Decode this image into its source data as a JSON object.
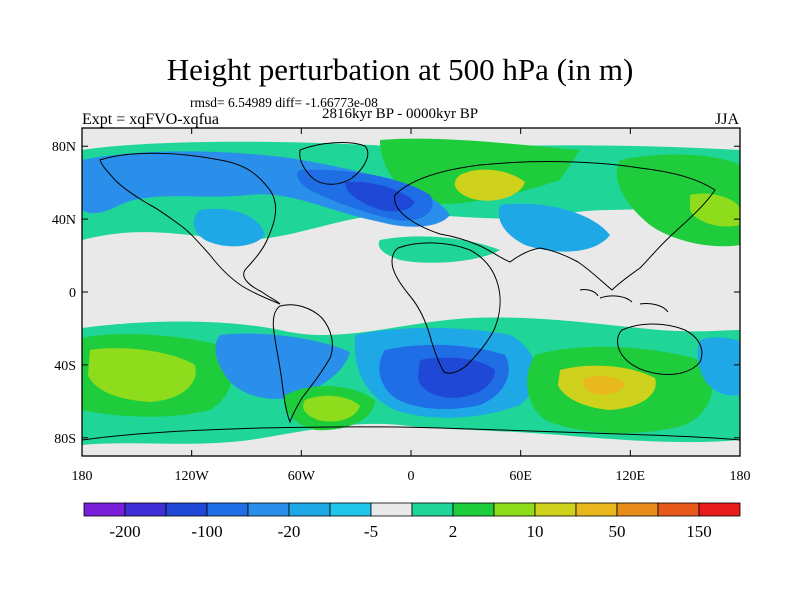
{
  "figure": {
    "title": "Height perturbation at 500 hPa (in m)",
    "stats": "rmsd= 6.54989 diff= -1.66773e-08",
    "period": "2816kyr BP - 0000kyr BP",
    "experiment": "Expt = xqFVO-xqfua",
    "season": "JJA"
  },
  "axes": {
    "lat_labels": [
      "80N",
      "40N",
      "0",
      "40S",
      "80S"
    ],
    "lat_values": [
      80,
      40,
      0,
      -40,
      -80
    ],
    "lon_labels": [
      "180",
      "120W",
      "60W",
      "0",
      "60E",
      "120E",
      "180"
    ],
    "lon_values": [
      -180,
      -120,
      -60,
      0,
      60,
      120,
      180
    ],
    "lat_range": [
      -90,
      90
    ],
    "lon_range": [
      -180,
      180
    ]
  },
  "colorbar": {
    "colors": [
      "#7a1fd8",
      "#3f2ed6",
      "#1f48d6",
      "#1f6ee6",
      "#2a8fea",
      "#1fa8e6",
      "#1fc6ea",
      "#e9e9e9",
      "#1fd698",
      "#1fcc3c",
      "#8fdc1c",
      "#cfd21c",
      "#e8b81c",
      "#e88c1c",
      "#e85a1c",
      "#e81c1c"
    ],
    "labels": [
      "-200",
      "-100",
      "-20",
      "-5",
      "2",
      "10",
      "50",
      "150"
    ]
  },
  "field_anomalies": [
    {
      "lon": -60,
      "lat": 60,
      "rx": 40,
      "ry": 16,
      "level": -2,
      "color": "#2a8fea"
    },
    {
      "lon": -20,
      "lat": 55,
      "rx": 22,
      "ry": 10,
      "level": -3,
      "color": "#1f6ee6"
    },
    {
      "lon": -120,
      "lat": 45,
      "rx": 20,
      "ry": 10,
      "level": -1,
      "color": "#1fa8e6"
    },
    {
      "lon": 40,
      "lat": 62,
      "rx": 32,
      "ry": 14,
      "level": 2,
      "color": "#1fcc3c"
    },
    {
      "lon": 45,
      "lat": 60,
      "rx": 14,
      "ry": 7,
      "level": 3,
      "color": "#cfd21c"
    },
    {
      "lon": 165,
      "lat": 50,
      "rx": 28,
      "ry": 14,
      "level": 2,
      "color": "#1fcc3c"
    },
    {
      "lon": 20,
      "lat": 40,
      "rx": 26,
      "ry": 10,
      "level": 1,
      "color": "#1fd698"
    },
    {
      "lon": -150,
      "lat": -35,
      "rx": 40,
      "ry": 16,
      "level": 3,
      "color": "#8fdc1c"
    },
    {
      "lon": -85,
      "lat": -45,
      "rx": 32,
      "ry": 14,
      "level": -2,
      "color": "#2a8fea"
    },
    {
      "lon": -40,
      "lat": -65,
      "rx": 28,
      "ry": 12,
      "level": 2,
      "color": "#1fcc3c"
    },
    {
      "lon": 35,
      "lat": -45,
      "rx": 36,
      "ry": 16,
      "level": -3,
      "color": "#1f48d6"
    },
    {
      "lon": 110,
      "lat": -50,
      "rx": 40,
      "ry": 16,
      "level": 3,
      "color": "#cfd21c"
    },
    {
      "lon": 100,
      "lat": -50,
      "rx": 14,
      "ry": 6,
      "level": 4,
      "color": "#e8b81c"
    }
  ]
}
